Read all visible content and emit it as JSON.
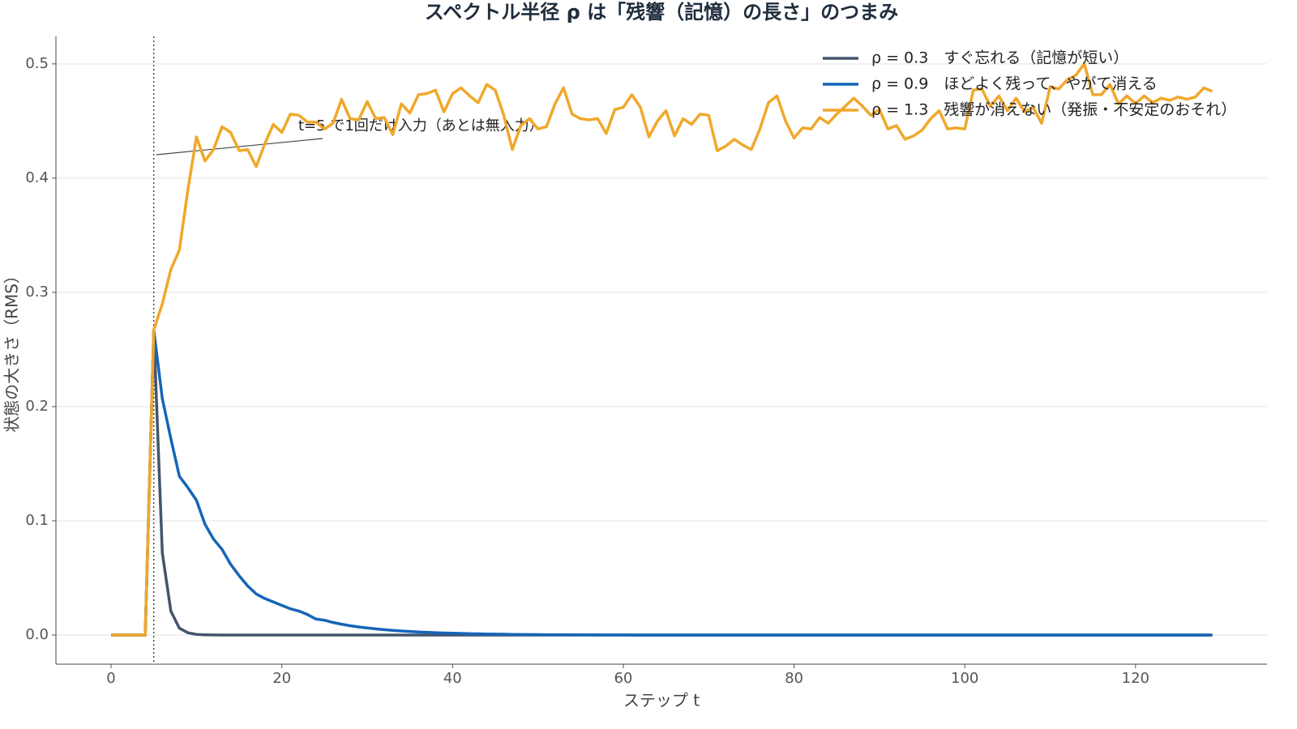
{
  "chart_data": {
    "type": "line",
    "title": "スペクトル半径 ρ は「残響（記憶）の長さ」のつまみ",
    "x_label": "ステップ t",
    "y_label": "状態の大きさ（RMS）",
    "annotation": "t=5 で1回だけ入力（あとは無入力）",
    "vline": 5,
    "grid": true,
    "legend": "upper right",
    "xlim": [
      -6.46,
      135.4
    ],
    "ylim": [
      -0.0255,
      0.524
    ],
    "xticks": [
      0,
      20,
      40,
      60,
      80,
      100,
      120
    ],
    "yticks": [
      {
        "value": 0,
        "label": "0.0"
      },
      0.1,
      0.2,
      0.3,
      0.4,
      0.5
    ],
    "x": [
      0,
      1,
      2,
      3,
      4,
      5,
      6,
      7,
      8,
      9,
      10,
      11,
      12,
      13,
      14,
      15,
      16,
      17,
      18,
      19,
      20,
      21,
      22,
      23,
      24,
      25,
      26,
      27,
      28,
      29,
      30,
      31,
      32,
      33,
      34,
      35,
      36,
      37,
      38,
      39,
      40,
      41,
      42,
      43,
      44,
      45,
      46,
      47,
      48,
      49,
      50,
      51,
      52,
      53,
      54,
      55,
      56,
      57,
      58,
      59,
      60,
      61,
      62,
      63,
      64,
      65,
      66,
      67,
      68,
      69,
      70,
      71,
      72,
      73,
      74,
      75,
      76,
      77,
      78,
      79,
      80,
      81,
      82,
      83,
      84,
      85,
      86,
      87,
      88,
      89,
      90,
      91,
      92,
      93,
      94,
      95,
      96,
      97,
      98,
      99,
      100,
      101,
      102,
      103,
      104,
      105,
      106,
      107,
      108,
      109,
      110,
      111,
      112,
      113,
      114,
      115,
      116,
      117,
      118,
      119,
      120,
      121,
      122,
      123,
      124,
      125,
      126,
      127,
      128,
      129
    ],
    "series": [
      {
        "name": "ρ = 0.3　すぐ忘れる（記憶が短い）",
        "color": "#44546a",
        "values": [
          0,
          0,
          0,
          0,
          0,
          0.267,
          0.072,
          0.021,
          0.006,
          0.002,
          0.0006,
          0.0002,
          0.0001,
          0,
          0,
          0,
          0,
          0,
          0,
          0,
          0,
          0,
          0,
          0,
          0,
          0,
          0,
          0,
          0,
          0,
          0,
          0,
          0,
          0,
          0,
          0,
          0,
          0,
          0,
          0,
          0,
          0,
          0,
          0,
          0,
          0,
          0,
          0,
          0,
          0,
          0,
          0,
          0,
          0,
          0,
          0,
          0,
          0,
          0,
          0,
          0,
          0,
          0,
          0,
          0,
          0,
          0,
          0,
          0,
          0,
          0,
          0,
          0,
          0,
          0,
          0,
          0,
          0,
          0,
          0,
          0,
          0,
          0,
          0,
          0,
          0,
          0,
          0,
          0,
          0,
          0,
          0,
          0,
          0,
          0,
          0,
          0,
          0,
          0,
          0,
          0,
          0,
          0,
          0,
          0,
          0,
          0,
          0,
          0,
          0,
          0,
          0,
          0,
          0,
          0,
          0,
          0,
          0,
          0,
          0,
          0,
          0,
          0,
          0,
          0,
          0,
          0,
          0,
          0,
          0
        ]
      },
      {
        "name": "ρ = 0.9　ほどよく残って、やがて消える",
        "color": "#1565b8",
        "values": [
          0,
          0,
          0,
          0,
          0,
          0.267,
          0.207,
          0.172,
          0.139,
          0.129,
          0.118,
          0.097,
          0.084,
          0.075,
          0.062,
          0.052,
          0.043,
          0.036,
          0.032,
          0.029,
          0.026,
          0.023,
          0.021,
          0.018,
          0.014,
          0.013,
          0.011,
          0.0095,
          0.0082,
          0.0071,
          0.0062,
          0.0054,
          0.0047,
          0.0041,
          0.0036,
          0.0031,
          0.0027,
          0.0024,
          0.0021,
          0.0018,
          0.0016,
          0.0014,
          0.0012,
          0.0011,
          0.0009,
          0.0008,
          0.0007,
          0.0006,
          0.0005,
          0.0005,
          0.0004,
          0.0003,
          0.0003,
          0.0003,
          0.0002,
          0.0002,
          0.0002,
          0.0001,
          0.0001,
          0.0001,
          0.0001,
          0,
          0,
          0,
          0,
          0,
          0,
          0,
          0,
          0,
          0,
          0,
          0,
          0,
          0,
          0,
          0,
          0,
          0,
          0,
          0,
          0,
          0,
          0,
          0,
          0,
          0,
          0,
          0,
          0,
          0,
          0,
          0,
          0,
          0,
          0,
          0,
          0,
          0,
          0,
          0,
          0,
          0,
          0,
          0,
          0,
          0,
          0,
          0,
          0,
          0,
          0,
          0,
          0,
          0,
          0,
          0,
          0,
          0,
          0,
          0,
          0,
          0,
          0,
          0,
          0,
          0,
          0,
          0,
          0
        ]
      },
      {
        "name": "ρ = 1.3　残響が消えない（発振・不安定のおそれ）",
        "color": "#f0a82a",
        "values": [
          0,
          0,
          0,
          0,
          0,
          0.267,
          0.29,
          0.32,
          0.337,
          0.39,
          0.436,
          0.415,
          0.425,
          0.445,
          0.44,
          0.424,
          0.425,
          0.41,
          0.43,
          0.447,
          0.44,
          0.456,
          0.455,
          0.449,
          0.449,
          0.443,
          0.448,
          0.469,
          0.452,
          0.451,
          0.467,
          0.452,
          0.453,
          0.438,
          0.465,
          0.457,
          0.473,
          0.474,
          0.477,
          0.458,
          0.474,
          0.479,
          0.472,
          0.466,
          0.482,
          0.477,
          0.455,
          0.425,
          0.446,
          0.452,
          0.443,
          0.445,
          0.465,
          0.479,
          0.456,
          0.452,
          0.451,
          0.452,
          0.439,
          0.46,
          0.462,
          0.473,
          0.462,
          0.436,
          0.45,
          0.459,
          0.437,
          0.452,
          0.447,
          0.456,
          0.455,
          0.424,
          0.428,
          0.434,
          0.429,
          0.425,
          0.443,
          0.466,
          0.472,
          0.45,
          0.435,
          0.444,
          0.443,
          0.453,
          0.448,
          0.456,
          0.463,
          0.47,
          0.463,
          0.455,
          0.46,
          0.443,
          0.446,
          0.434,
          0.437,
          0.442,
          0.452,
          0.459,
          0.443,
          0.444,
          0.443,
          0.477,
          0.478,
          0.463,
          0.472,
          0.459,
          0.47,
          0.458,
          0.462,
          0.448,
          0.48,
          0.478,
          0.486,
          0.49,
          0.5,
          0.473,
          0.473,
          0.482,
          0.465,
          0.472,
          0.465,
          0.472,
          0.466,
          0.47,
          0.468,
          0.471,
          0.469,
          0.471,
          0.479,
          0.476
        ]
      }
    ]
  }
}
